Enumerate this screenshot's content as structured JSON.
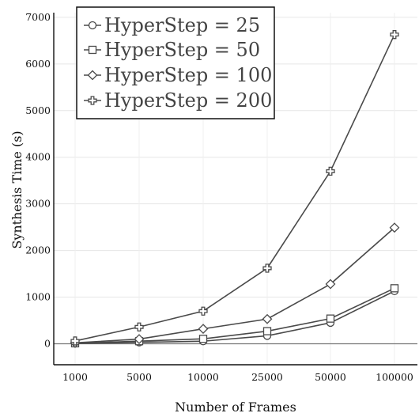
{
  "chart_data": {
    "type": "line",
    "xlabel": "Number of Frames",
    "ylabel": "Synthesis Time (s)",
    "categories": [
      "1000",
      "5000",
      "10000",
      "25000",
      "50000",
      "100000"
    ],
    "ylim": [
      -450,
      7100
    ],
    "yticks": [
      0,
      1000,
      2000,
      3000,
      4000,
      5000,
      6000,
      7000
    ],
    "grid": true,
    "zero_line": true,
    "legend_position": "top-left",
    "line_color": "#4a4a4a",
    "series": [
      {
        "name": "HyperStep = 25",
        "marker": "circle",
        "values": [
          5,
          30,
          55,
          170,
          450,
          1130
        ]
      },
      {
        "name": "HyperStep = 50",
        "marker": "square",
        "values": [
          10,
          55,
          105,
          270,
          540,
          1190
        ]
      },
      {
        "name": "HyperStep = 100",
        "marker": "diamond",
        "values": [
          20,
          100,
          320,
          530,
          1280,
          2490
        ]
      },
      {
        "name": "HyperStep = 200",
        "marker": "plus",
        "values": [
          60,
          360,
          700,
          1620,
          3700,
          6630
        ]
      }
    ]
  }
}
